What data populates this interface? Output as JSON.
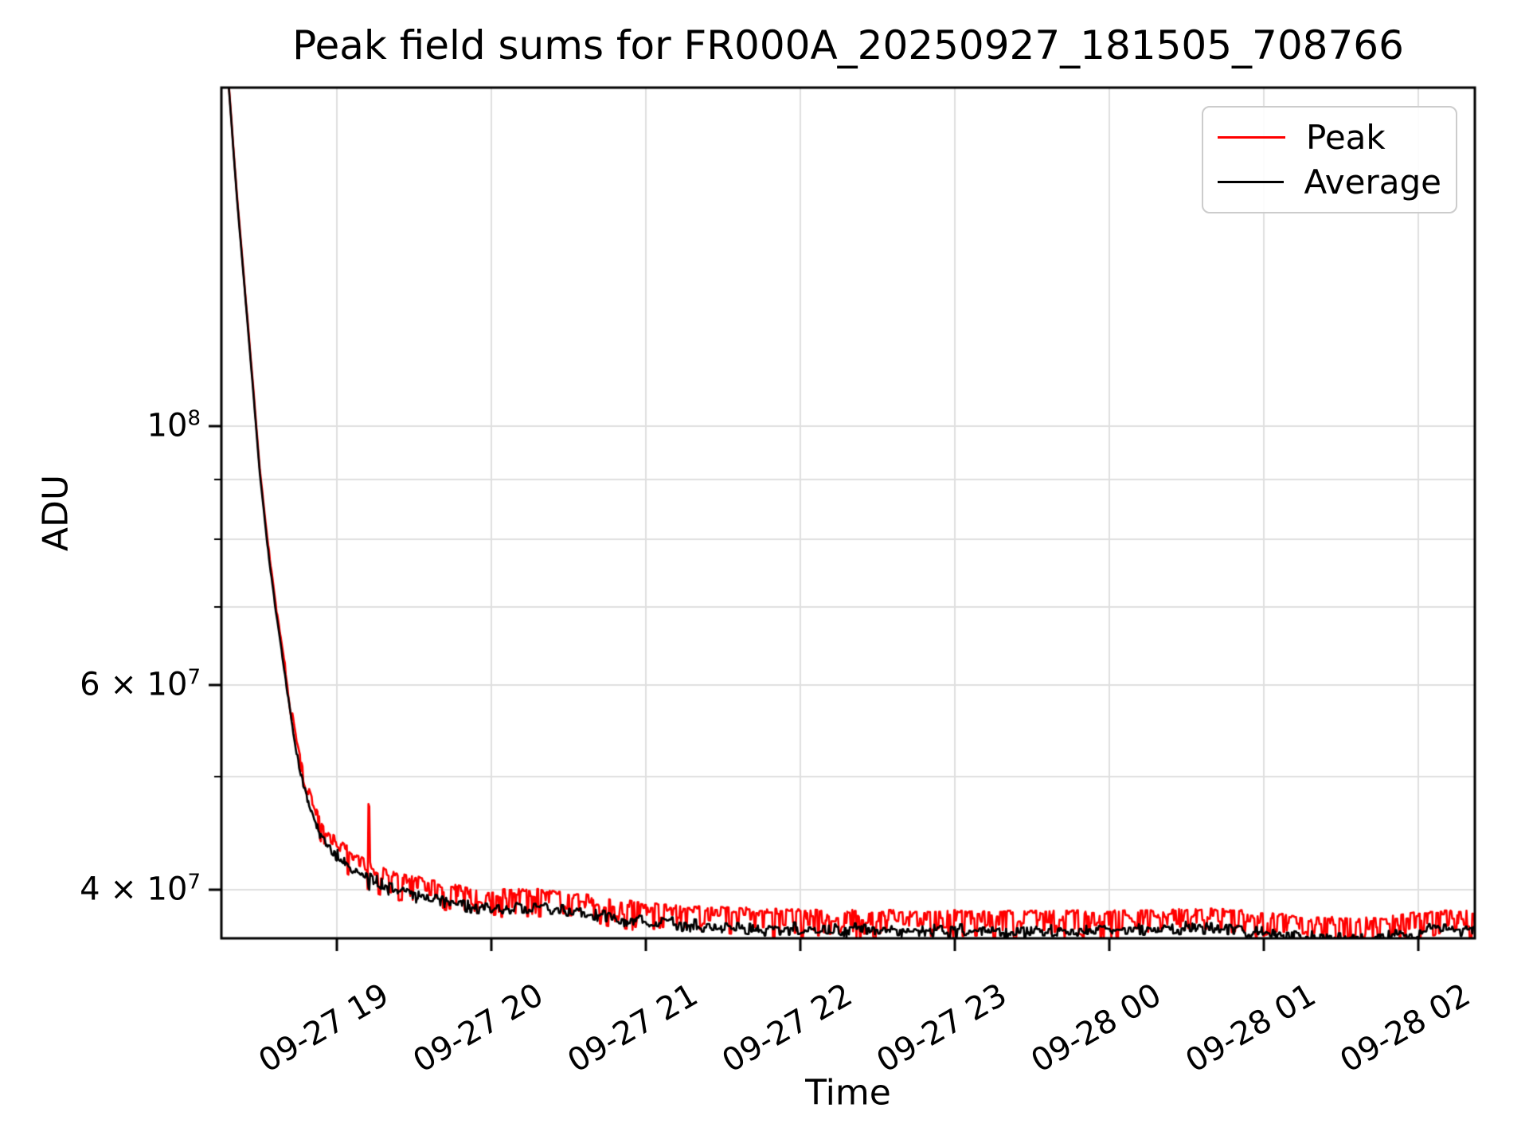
{
  "chart_data": {
    "type": "line",
    "title": "Peak field sums for FR000A_20250927_181505_708766",
    "xlabel": "Time",
    "ylabel": "ADU",
    "yscale": "log",
    "grid": true,
    "grid_color": "#dfdfdf",
    "x_unit": "hours since 2025-09-27 00:00",
    "xlim": [
      18.251,
      26.367
    ],
    "ylim": [
      36350000.0,
      195300000.0
    ],
    "x_ticks": [
      {
        "t": 19,
        "label": "09-27 19"
      },
      {
        "t": 20,
        "label": "09-27 20"
      },
      {
        "t": 21,
        "label": "09-27 21"
      },
      {
        "t": 22,
        "label": "09-27 22"
      },
      {
        "t": 23,
        "label": "09-27 23"
      },
      {
        "t": 24,
        "label": "09-28 00"
      },
      {
        "t": 25,
        "label": "09-28 01"
      },
      {
        "t": 26,
        "label": "09-28 02"
      }
    ],
    "y_ticks_major": [
      {
        "v": 100000000.0,
        "mantissa": "10",
        "exponent": "8"
      },
      {
        "v": 60000000.0,
        "mantissa": "6 × 10",
        "exponent": "7"
      },
      {
        "v": 40000000.0,
        "mantissa": "4 × 10",
        "exponent": "7"
      }
    ],
    "y_ticks_minor": [
      90000000.0,
      80000000.0,
      70000000.0,
      50000000.0
    ],
    "legend": {
      "position": "upper right",
      "entries": [
        "Peak",
        "Average"
      ]
    },
    "series": [
      {
        "name": "Peak",
        "color": "#ff0000",
        "points": [
          [
            18.251,
            212000000.0
          ],
          [
            18.3,
            196000000.0
          ],
          [
            18.35,
            159000000.0
          ],
          [
            18.4,
            133000000.0
          ],
          [
            18.45,
            111000000.0
          ],
          [
            18.5,
            92000000.0
          ],
          [
            18.55,
            80000000.0
          ],
          [
            18.6,
            71000000.0
          ],
          [
            18.65,
            64200000.0
          ],
          [
            18.7,
            57800000.0
          ],
          [
            18.75,
            52800000.0
          ],
          [
            18.8,
            49600000.0
          ],
          [
            18.85,
            47400000.0
          ],
          [
            18.9,
            45800000.0
          ],
          [
            18.95,
            44900000.0
          ],
          [
            19.0,
            44300000.0
          ],
          [
            19.1,
            43100000.0
          ],
          [
            19.2,
            42300000.0
          ],
          [
            19.35,
            41500000.0
          ],
          [
            19.5,
            41000000.0
          ],
          [
            19.7,
            40400000.0
          ],
          [
            19.9,
            40000000.0
          ],
          [
            20.0,
            39900000.0
          ],
          [
            20.2,
            40000000.0
          ],
          [
            20.4,
            39900000.0
          ],
          [
            20.6,
            39600000.0
          ],
          [
            20.8,
            39200000.0
          ],
          [
            21.0,
            38900000.0
          ],
          [
            21.3,
            38700000.0
          ],
          [
            21.6,
            38500000.0
          ],
          [
            22.0,
            38400000.0
          ],
          [
            22.5,
            38300000.0
          ],
          [
            23.0,
            38300000.0
          ],
          [
            23.5,
            38300000.0
          ],
          [
            24.0,
            38300000.0
          ],
          [
            24.3,
            38400000.0
          ],
          [
            24.6,
            38500000.0
          ],
          [
            24.9,
            38300000.0
          ],
          [
            25.1,
            38100000.0
          ],
          [
            25.3,
            37900000.0
          ],
          [
            25.6,
            37700000.0
          ],
          [
            25.8,
            37900000.0
          ],
          [
            26.0,
            38200000.0
          ],
          [
            26.15,
            38300000.0
          ],
          [
            26.37,
            38300000.0
          ]
        ],
        "spikes": [
          [
            19.205,
            47400000.0
          ]
        ],
        "noise": {
          "up": 0.004,
          "down": 0.055,
          "skew": 2.0
        }
      },
      {
        "name": "Average",
        "color": "#000000",
        "points": [
          [
            18.251,
            210000000.0
          ],
          [
            18.3,
            195000000.0
          ],
          [
            18.35,
            158000000.0
          ],
          [
            18.4,
            132000000.0
          ],
          [
            18.45,
            110000000.0
          ],
          [
            18.5,
            91000000.0
          ],
          [
            18.55,
            79000000.0
          ],
          [
            18.6,
            70000000.0
          ],
          [
            18.65,
            63000000.0
          ],
          [
            18.7,
            56500000.0
          ],
          [
            18.75,
            51500000.0
          ],
          [
            18.8,
            48200000.0
          ],
          [
            18.85,
            46000000.0
          ],
          [
            18.9,
            44500000.0
          ],
          [
            18.95,
            43600000.0
          ],
          [
            19.0,
            43000000.0
          ],
          [
            19.1,
            41800000.0
          ],
          [
            19.2,
            41000000.0
          ],
          [
            19.35,
            40200000.0
          ],
          [
            19.5,
            39700000.0
          ],
          [
            19.7,
            39200000.0
          ],
          [
            19.9,
            38800000.0
          ],
          [
            20.0,
            38600000.0
          ],
          [
            20.2,
            38700000.0
          ],
          [
            20.4,
            38600000.0
          ],
          [
            20.6,
            38300000.0
          ],
          [
            20.8,
            37900000.0
          ],
          [
            21.0,
            37600000.0
          ],
          [
            21.3,
            37400000.0
          ],
          [
            21.6,
            37200000.0
          ],
          [
            22.0,
            37100000.0
          ],
          [
            22.5,
            37000000.0
          ],
          [
            23.0,
            37000000.0
          ],
          [
            23.5,
            37000000.0
          ],
          [
            24.0,
            37000000.0
          ],
          [
            24.3,
            37100000.0
          ],
          [
            24.6,
            37200000.0
          ],
          [
            24.9,
            37000000.0
          ],
          [
            25.1,
            36800000.0
          ],
          [
            25.3,
            36600000.0
          ],
          [
            25.6,
            36400000.0
          ],
          [
            25.8,
            36600000.0
          ],
          [
            26.0,
            37000000.0
          ],
          [
            26.15,
            37100000.0
          ],
          [
            26.37,
            37100000.0
          ]
        ],
        "spikes": [
          [
            19.205,
            40200000.0
          ]
        ],
        "noise": {
          "up": 0.012,
          "down": 0.018,
          "skew": 1.0
        }
      }
    ],
    "noise_ramp": [
      18.5,
      18.95
    ],
    "seed": 1337
  }
}
